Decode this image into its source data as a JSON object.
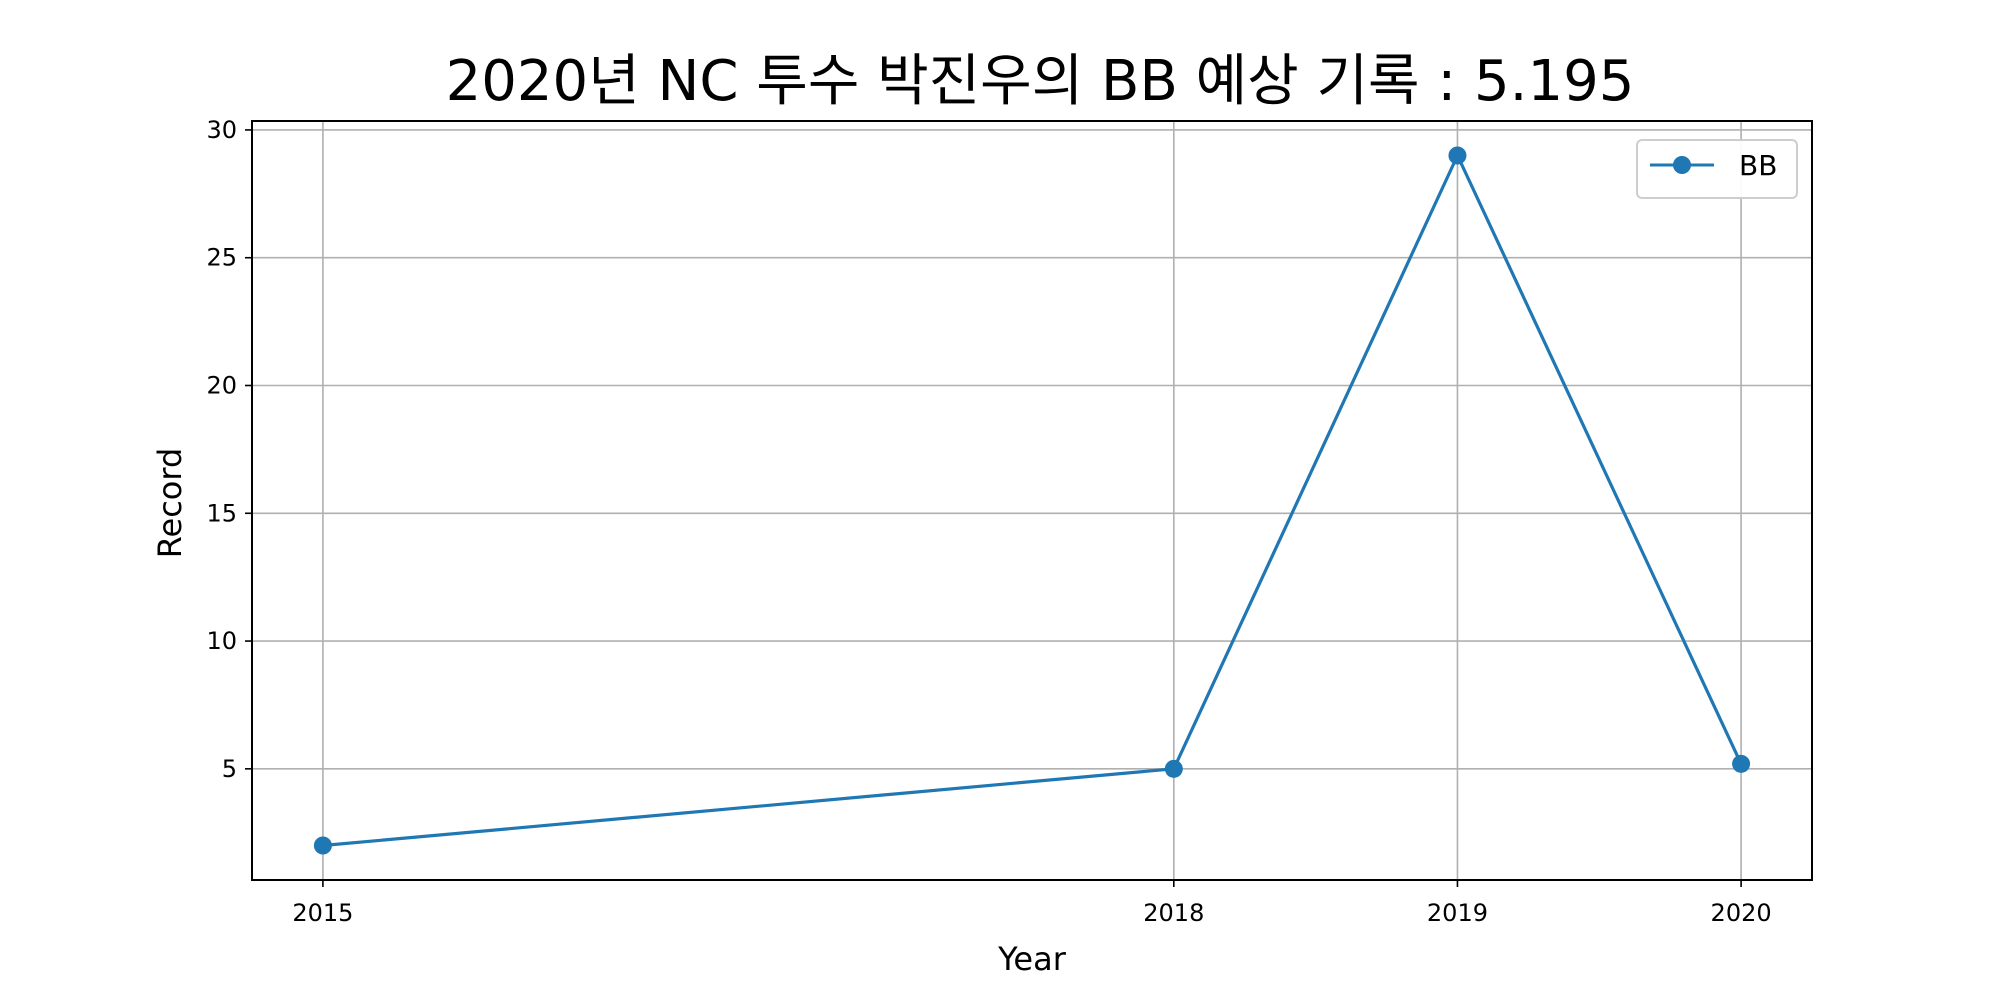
{
  "chart_data": {
    "type": "line",
    "title": "2020년 NC 투수 박진우의 BB 예상 기록 : 5.195",
    "xlabel": "Year",
    "ylabel": "Record",
    "x": [
      2015,
      2018,
      2019,
      2020
    ],
    "x_ticks": [
      "2015",
      "2018",
      "2019",
      "2020"
    ],
    "xlim": [
      2014.75,
      2020.25
    ],
    "y_ticks": [
      "5",
      "10",
      "15",
      "20",
      "25",
      "30"
    ],
    "ylim": [
      0.65,
      30.35
    ],
    "grid": true,
    "legend_position": "top-right",
    "series": [
      {
        "name": "BB",
        "values": [
          2,
          5,
          29,
          5.195
        ],
        "color": "#1f77b4",
        "marker": "circle"
      }
    ]
  }
}
